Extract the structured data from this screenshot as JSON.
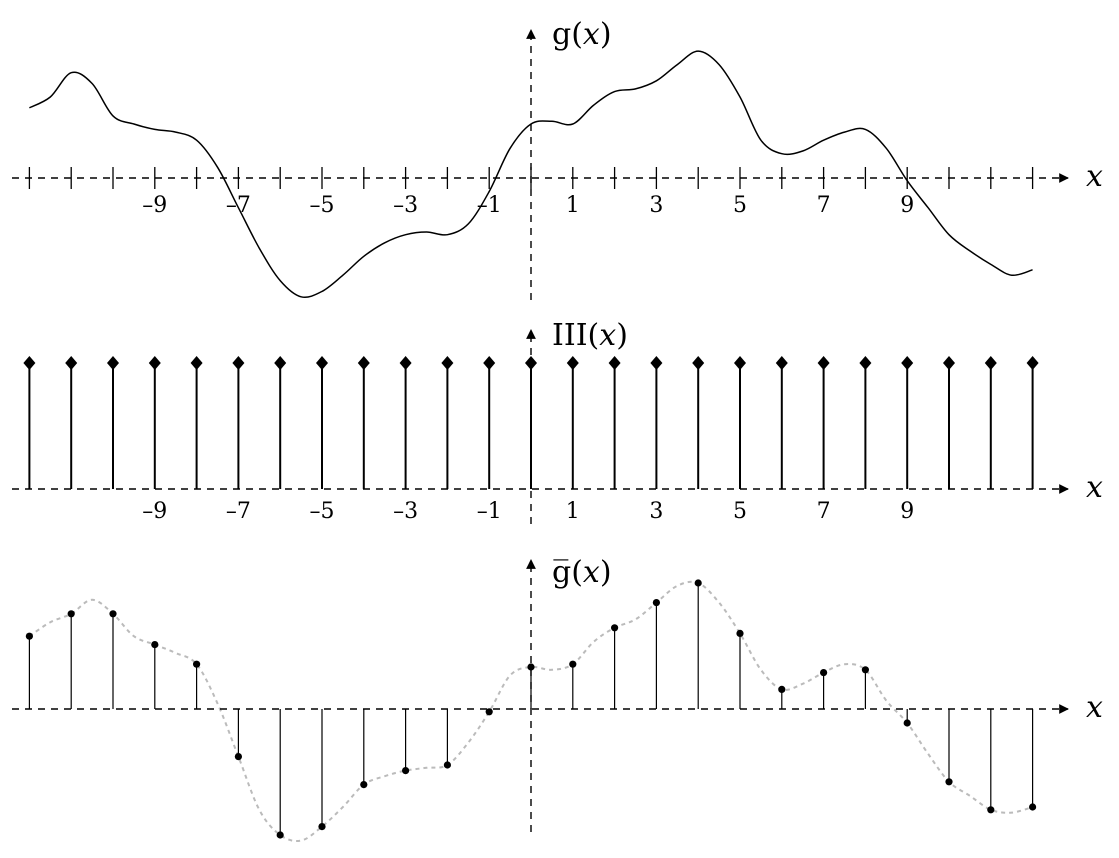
{
  "chart_data": [
    {
      "type": "line",
      "panel": "continuous",
      "ylabel_prefix": "g(",
      "ylabel_var": "x",
      "ylabel_suffix": ")",
      "xlabel": "x",
      "x_ticks": [
        -12,
        -11,
        -10,
        -9,
        -8,
        -7,
        -6,
        -5,
        -4,
        -3,
        -2,
        -1,
        0,
        1,
        2,
        3,
        4,
        5,
        6,
        7,
        8,
        9,
        10,
        11,
        12
      ],
      "x_tick_labels": [
        {
          "x": -9,
          "text": "–9"
        },
        {
          "x": -7,
          "text": "–7"
        },
        {
          "x": -5,
          "text": "–5"
        },
        {
          "x": -3,
          "text": "–3"
        },
        {
          "x": -1,
          "text": "–1"
        },
        {
          "x": 1,
          "text": "1"
        },
        {
          "x": 3,
          "text": "3"
        },
        {
          "x": 5,
          "text": "5"
        },
        {
          "x": 7,
          "text": "7"
        },
        {
          "x": 9,
          "text": "9"
        }
      ],
      "xlim": [
        -12,
        12
      ],
      "ylim": [
        -2.2,
        2.3
      ],
      "curve": [
        [
          -12,
          1.3
        ],
        [
          -11.5,
          1.5
        ],
        [
          -11,
          1.95
        ],
        [
          -10.5,
          1.75
        ],
        [
          -10,
          1.15
        ],
        [
          -9.5,
          1.0
        ],
        [
          -9,
          0.9
        ],
        [
          -8.5,
          0.85
        ],
        [
          -8,
          0.7
        ],
        [
          -7.5,
          0.2
        ],
        [
          -7,
          -0.55
        ],
        [
          -6.5,
          -1.3
        ],
        [
          -6,
          -1.9
        ],
        [
          -5.5,
          -2.2
        ],
        [
          -5,
          -2.1
        ],
        [
          -4.5,
          -1.8
        ],
        [
          -4,
          -1.45
        ],
        [
          -3.5,
          -1.2
        ],
        [
          -3,
          -1.05
        ],
        [
          -2.5,
          -1.0
        ],
        [
          -2,
          -1.05
        ],
        [
          -1.5,
          -0.85
        ],
        [
          -1,
          -0.25
        ],
        [
          -0.5,
          0.55
        ],
        [
          0,
          1.0
        ],
        [
          0.5,
          1.05
        ],
        [
          1,
          1.0
        ],
        [
          1.5,
          1.35
        ],
        [
          2,
          1.6
        ],
        [
          2.5,
          1.65
        ],
        [
          3,
          1.8
        ],
        [
          3.5,
          2.1
        ],
        [
          4,
          2.35
        ],
        [
          4.5,
          2.1
        ],
        [
          5,
          1.5
        ],
        [
          5.5,
          0.7
        ],
        [
          6,
          0.45
        ],
        [
          6.5,
          0.5
        ],
        [
          7,
          0.7
        ],
        [
          7.5,
          0.85
        ],
        [
          8,
          0.9
        ],
        [
          8.5,
          0.55
        ],
        [
          9,
          -0.05
        ],
        [
          9.5,
          -0.55
        ],
        [
          10,
          -1.05
        ],
        [
          10.5,
          -1.35
        ],
        [
          11,
          -1.6
        ],
        [
          11.5,
          -1.8
        ],
        [
          12,
          -1.7
        ]
      ]
    },
    {
      "type": "bar",
      "panel": "comb",
      "ylabel": "III(",
      "ylabel_var": "x",
      "ylabel_suffix": ")",
      "xlabel": "x",
      "x": [
        -12,
        -11,
        -10,
        -9,
        -8,
        -7,
        -6,
        -5,
        -4,
        -3,
        -2,
        -1,
        0,
        1,
        2,
        3,
        4,
        5,
        6,
        7,
        8,
        9,
        10,
        11,
        12
      ],
      "values": [
        1,
        1,
        1,
        1,
        1,
        1,
        1,
        1,
        1,
        1,
        1,
        1,
        1,
        1,
        1,
        1,
        1,
        1,
        1,
        1,
        1,
        1,
        1,
        1,
        1
      ],
      "x_tick_labels": [
        {
          "x": -9,
          "text": "–9"
        },
        {
          "x": -7,
          "text": "–7"
        },
        {
          "x": -5,
          "text": "–5"
        },
        {
          "x": -3,
          "text": "–3"
        },
        {
          "x": -1,
          "text": "–1"
        },
        {
          "x": 1,
          "text": "1"
        },
        {
          "x": 3,
          "text": "3"
        },
        {
          "x": 5,
          "text": "5"
        },
        {
          "x": 7,
          "text": "7"
        },
        {
          "x": 9,
          "text": "9"
        }
      ],
      "xlim": [
        -12,
        12
      ],
      "ylim": [
        0,
        1
      ]
    },
    {
      "type": "scatter",
      "panel": "sampled",
      "ylabel_prefix": "g̅(",
      "ylabel_var": "x",
      "ylabel_suffix": ")",
      "xlabel": "x",
      "x": [
        -12,
        -11,
        -10,
        -9,
        -8,
        -7,
        -6,
        -5,
        -4,
        -3,
        -2,
        -1,
        0,
        1,
        2,
        3,
        4,
        5,
        6,
        7,
        8,
        9,
        10,
        11,
        12
      ],
      "values": [
        1.3,
        1.7,
        1.7,
        1.15,
        0.8,
        -0.85,
        -2.25,
        -2.1,
        -1.35,
        -1.1,
        -1.0,
        -0.05,
        0.75,
        0.8,
        1.45,
        1.9,
        2.25,
        1.35,
        0.35,
        0.65,
        0.7,
        -0.25,
        -1.3,
        -1.8,
        -1.75
      ],
      "curve": [
        [
          -12,
          1.3
        ],
        [
          -11.5,
          1.55
        ],
        [
          -11,
          1.7
        ],
        [
          -10.5,
          1.95
        ],
        [
          -10,
          1.7
        ],
        [
          -9.5,
          1.3
        ],
        [
          -9,
          1.15
        ],
        [
          -8.5,
          1.0
        ],
        [
          -8,
          0.8
        ],
        [
          -7.5,
          0.1
        ],
        [
          -7,
          -0.85
        ],
        [
          -6.5,
          -1.8
        ],
        [
          -6,
          -2.25
        ],
        [
          -5.5,
          -2.35
        ],
        [
          -5,
          -2.1
        ],
        [
          -4.5,
          -1.75
        ],
        [
          -4,
          -1.35
        ],
        [
          -3.5,
          -1.2
        ],
        [
          -3,
          -1.1
        ],
        [
          -2.5,
          -1.05
        ],
        [
          -2,
          -1.0
        ],
        [
          -1.5,
          -0.6
        ],
        [
          -1,
          -0.05
        ],
        [
          -0.5,
          0.6
        ],
        [
          0,
          0.75
        ],
        [
          0.5,
          0.7
        ],
        [
          1,
          0.8
        ],
        [
          1.5,
          1.2
        ],
        [
          2,
          1.45
        ],
        [
          2.5,
          1.6
        ],
        [
          3,
          1.9
        ],
        [
          3.5,
          2.2
        ],
        [
          4,
          2.25
        ],
        [
          4.5,
          1.9
        ],
        [
          5,
          1.35
        ],
        [
          5.5,
          0.7
        ],
        [
          6,
          0.35
        ],
        [
          6.5,
          0.45
        ],
        [
          7,
          0.65
        ],
        [
          7.5,
          0.8
        ],
        [
          8,
          0.7
        ],
        [
          8.5,
          0.15
        ],
        [
          9,
          -0.25
        ],
        [
          9.5,
          -0.8
        ],
        [
          10,
          -1.3
        ],
        [
          10.5,
          -1.55
        ],
        [
          11,
          -1.8
        ],
        [
          11.5,
          -1.85
        ],
        [
          12,
          -1.75
        ]
      ],
      "xlim": [
        -12,
        12
      ],
      "ylim": [
        -2.4,
        2.4
      ]
    }
  ]
}
